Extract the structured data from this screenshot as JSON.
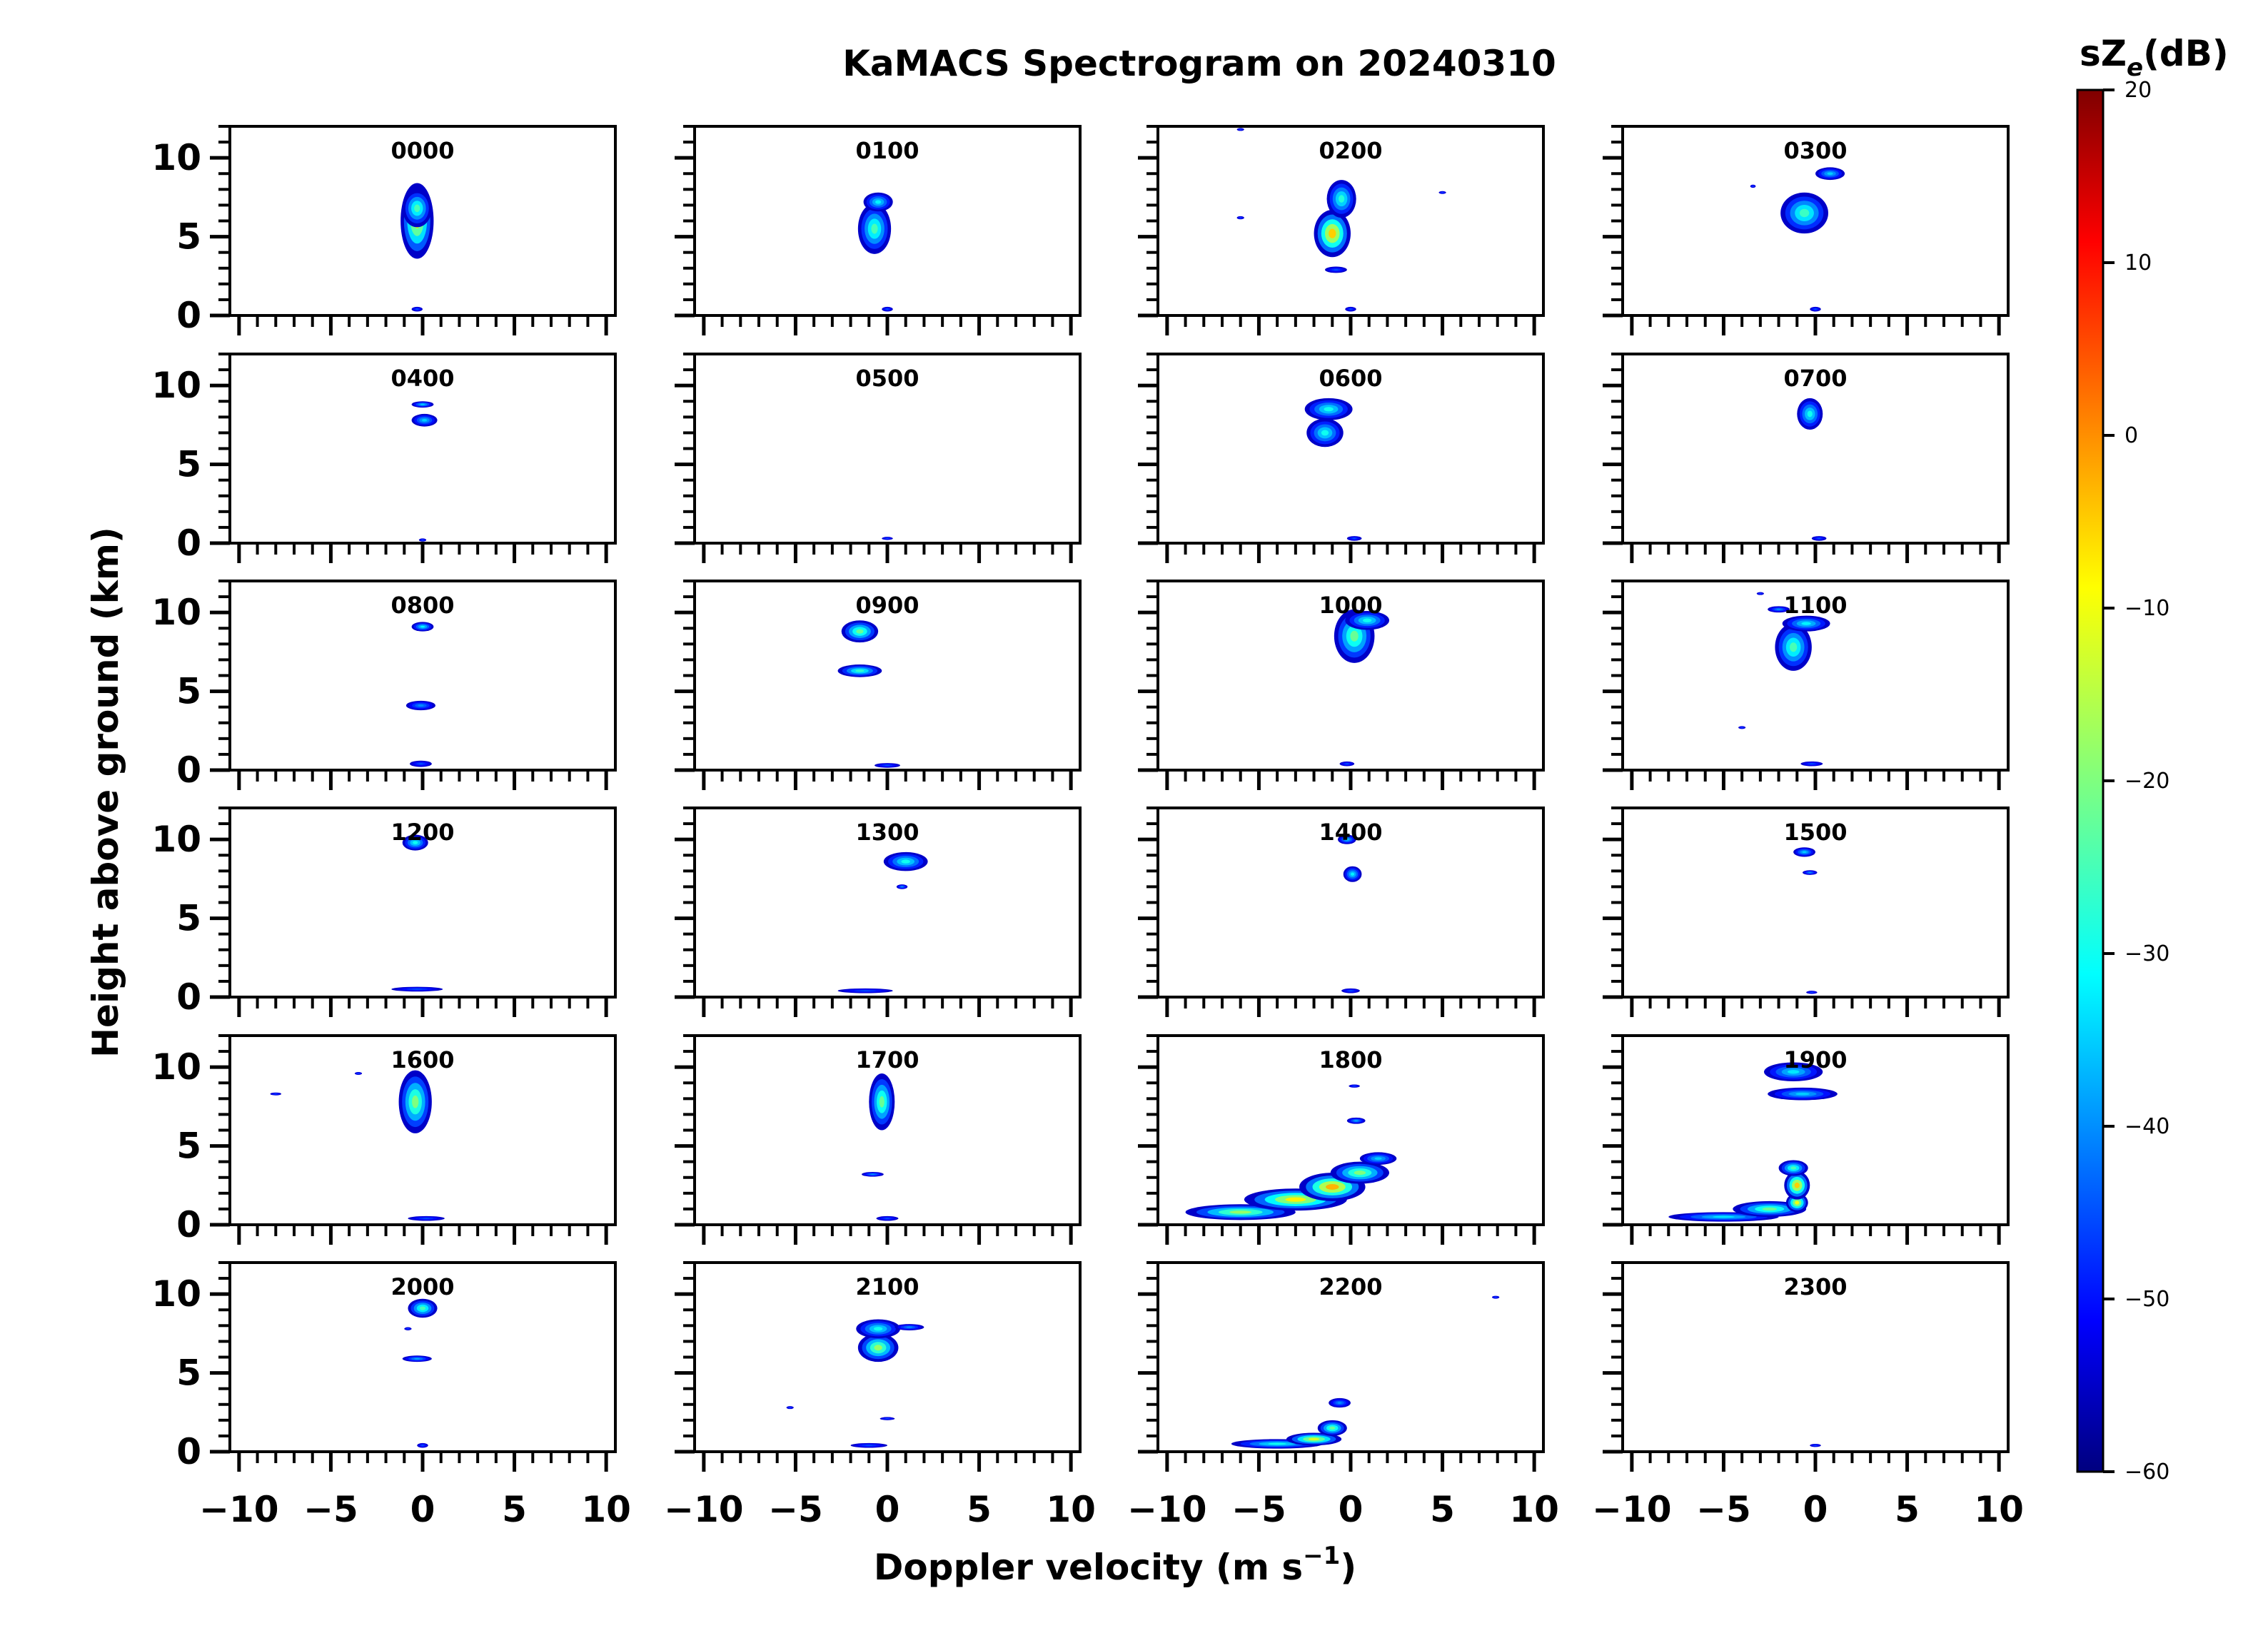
{
  "figure": {
    "title": "KaMACS Spectrogram on 20240310",
    "xlabel": "Doppler velocity (m s",
    "xlabel_sup": "−1",
    "xlabel_end": ")",
    "ylabel": "Height above ground (km)",
    "colorbar_label_main": "sZ",
    "colorbar_label_sub": "e",
    "colorbar_label_end": "(dB)"
  },
  "colorbar": {
    "ticks": [
      "20",
      "10",
      "0",
      "−10",
      "−20",
      "−30",
      "−40",
      "−50",
      "−60"
    ],
    "range": [
      -60,
      20
    ],
    "colormap": "jet",
    "colors": [
      "#00007f",
      "#0000ff",
      "#007fff",
      "#00ffff",
      "#7fff7f",
      "#ffff00",
      "#ff7f00",
      "#ff0000",
      "#7f0000"
    ]
  },
  "axes": {
    "xticks": [
      "−10",
      "−5",
      "0",
      "5",
      "10"
    ],
    "yticks": [
      "10",
      "5",
      "0"
    ]
  },
  "chart_data": {
    "type": "heatmap",
    "title": "KaMACS Spectrogram on 20240310",
    "xlabel": "Doppler velocity (m s−1)",
    "ylabel": "Height above ground (km)",
    "xlim": [
      -10.5,
      10.5
    ],
    "ylim": [
      0,
      12
    ],
    "xticks": [
      -10,
      -5,
      0,
      5,
      10
    ],
    "yticks": [
      0,
      5,
      10
    ],
    "colorbar": {
      "label": "sZe(dB)",
      "range": [
        -60,
        20
      ]
    },
    "panels": [
      {
        "label": "0000",
        "blobs": [
          {
            "v": -0.3,
            "h": 6.0,
            "dv": 0.9,
            "dh": 2.4,
            "z": -12
          },
          {
            "v": -0.3,
            "h": 6.8,
            "dv": 0.8,
            "dh": 1.2,
            "z": -25
          },
          {
            "v": -0.3,
            "h": 0.4,
            "dv": 0.3,
            "dh": 0.15,
            "z": -45
          }
        ]
      },
      {
        "label": "0100",
        "blobs": [
          {
            "v": -0.7,
            "h": 5.5,
            "dv": 0.9,
            "dh": 1.6,
            "z": -25
          },
          {
            "v": -0.5,
            "h": 7.2,
            "dv": 0.8,
            "dh": 0.6,
            "z": -32
          },
          {
            "v": 0.0,
            "h": 0.4,
            "dv": 0.3,
            "dh": 0.15,
            "z": -45
          }
        ]
      },
      {
        "label": "0200",
        "blobs": [
          {
            "v": -1.0,
            "h": 5.2,
            "dv": 1.0,
            "dh": 1.5,
            "z": -5
          },
          {
            "v": -0.5,
            "h": 7.4,
            "dv": 0.8,
            "dh": 1.2,
            "z": -28
          },
          {
            "v": -0.8,
            "h": 2.9,
            "dv": 0.6,
            "dh": 0.2,
            "z": -45
          },
          {
            "v": -6.0,
            "h": 6.2,
            "dv": 0.2,
            "dh": 0.1,
            "z": -45
          },
          {
            "v": 5.0,
            "h": 7.8,
            "dv": 0.2,
            "dh": 0.08,
            "z": -45
          },
          {
            "v": -6.0,
            "h": 11.8,
            "dv": 0.2,
            "dh": 0.08,
            "z": -45
          },
          {
            "v": 0.0,
            "h": 0.4,
            "dv": 0.3,
            "dh": 0.15,
            "z": -45
          }
        ]
      },
      {
        "label": "0300",
        "blobs": [
          {
            "v": -0.6,
            "h": 6.5,
            "dv": 1.3,
            "dh": 1.3,
            "z": -26
          },
          {
            "v": 0.8,
            "h": 9.0,
            "dv": 0.8,
            "dh": 0.4,
            "z": -35
          },
          {
            "v": -3.4,
            "h": 8.2,
            "dv": 0.15,
            "dh": 0.1,
            "z": -45
          },
          {
            "v": 0.0,
            "h": 0.4,
            "dv": 0.3,
            "dh": 0.15,
            "z": -45
          }
        ]
      },
      {
        "label": "0400",
        "blobs": [
          {
            "v": 0.0,
            "h": 8.8,
            "dv": 0.6,
            "dh": 0.2,
            "z": -35
          },
          {
            "v": 0.1,
            "h": 7.8,
            "dv": 0.7,
            "dh": 0.4,
            "z": -35
          },
          {
            "v": 0.0,
            "h": 0.2,
            "dv": 0.2,
            "dh": 0.1,
            "z": -45
          }
        ]
      },
      {
        "label": "0500",
        "blobs": [
          {
            "v": 0.0,
            "h": 0.3,
            "dv": 0.3,
            "dh": 0.1,
            "z": -45
          }
        ]
      },
      {
        "label": "0600",
        "blobs": [
          {
            "v": -1.2,
            "h": 8.5,
            "dv": 1.3,
            "dh": 0.7,
            "z": -30
          },
          {
            "v": -1.4,
            "h": 7.0,
            "dv": 1.0,
            "dh": 0.9,
            "z": -30
          },
          {
            "v": 0.2,
            "h": 0.3,
            "dv": 0.4,
            "dh": 0.15,
            "z": -45
          }
        ]
      },
      {
        "label": "0700",
        "blobs": [
          {
            "v": -0.3,
            "h": 8.2,
            "dv": 0.7,
            "dh": 1.0,
            "z": -30
          },
          {
            "v": 0.2,
            "h": 0.3,
            "dv": 0.4,
            "dh": 0.15,
            "z": -45
          }
        ]
      },
      {
        "label": "0800",
        "blobs": [
          {
            "v": 0.0,
            "h": 9.1,
            "dv": 0.6,
            "dh": 0.3,
            "z": -32
          },
          {
            "v": -0.1,
            "h": 4.1,
            "dv": 0.8,
            "dh": 0.3,
            "z": -40
          },
          {
            "v": -0.1,
            "h": 0.4,
            "dv": 0.6,
            "dh": 0.2,
            "z": -45
          }
        ]
      },
      {
        "label": "0900",
        "blobs": [
          {
            "v": -1.5,
            "h": 8.8,
            "dv": 1.0,
            "dh": 0.7,
            "z": -22
          },
          {
            "v": -1.5,
            "h": 6.3,
            "dv": 1.2,
            "dh": 0.4,
            "z": -27
          },
          {
            "v": 0.0,
            "h": 0.3,
            "dv": 0.7,
            "dh": 0.15,
            "z": -45
          }
        ]
      },
      {
        "label": "1000",
        "blobs": [
          {
            "v": 0.2,
            "h": 8.5,
            "dv": 1.1,
            "dh": 1.7,
            "z": -22
          },
          {
            "v": 0.9,
            "h": 9.5,
            "dv": 1.2,
            "dh": 0.6,
            "z": -30
          },
          {
            "v": -0.2,
            "h": 0.4,
            "dv": 0.4,
            "dh": 0.15,
            "z": -45
          }
        ]
      },
      {
        "label": "1100",
        "blobs": [
          {
            "v": -1.2,
            "h": 7.8,
            "dv": 1.0,
            "dh": 1.5,
            "z": -25
          },
          {
            "v": -0.5,
            "h": 9.3,
            "dv": 1.3,
            "dh": 0.5,
            "z": -32
          },
          {
            "v": -2.0,
            "h": 10.2,
            "dv": 0.6,
            "dh": 0.2,
            "z": -40
          },
          {
            "v": -4.0,
            "h": 2.7,
            "dv": 0.2,
            "dh": 0.08,
            "z": -45
          },
          {
            "v": -3.0,
            "h": 11.2,
            "dv": 0.2,
            "dh": 0.08,
            "z": -45
          },
          {
            "v": -0.2,
            "h": 0.4,
            "dv": 0.6,
            "dh": 0.15,
            "z": -45
          }
        ]
      },
      {
        "label": "1200",
        "blobs": [
          {
            "v": -0.4,
            "h": 9.8,
            "dv": 0.7,
            "dh": 0.5,
            "z": -30
          },
          {
            "v": -0.3,
            "h": 0.5,
            "dv": 1.4,
            "dh": 0.15,
            "z": -45
          }
        ]
      },
      {
        "label": "1300",
        "blobs": [
          {
            "v": 1.0,
            "h": 8.6,
            "dv": 1.2,
            "dh": 0.6,
            "z": -30
          },
          {
            "v": 0.8,
            "h": 7.0,
            "dv": 0.3,
            "dh": 0.15,
            "z": -40
          },
          {
            "v": -1.2,
            "h": 0.4,
            "dv": 1.5,
            "dh": 0.15,
            "z": -45
          }
        ]
      },
      {
        "label": "1400",
        "blobs": [
          {
            "v": -0.2,
            "h": 10.0,
            "dv": 0.5,
            "dh": 0.3,
            "z": -35
          },
          {
            "v": 0.1,
            "h": 7.8,
            "dv": 0.5,
            "dh": 0.5,
            "z": -32
          },
          {
            "v": 0.0,
            "h": 0.4,
            "dv": 0.5,
            "dh": 0.15,
            "z": -45
          }
        ]
      },
      {
        "label": "1500",
        "blobs": [
          {
            "v": -0.6,
            "h": 9.2,
            "dv": 0.6,
            "dh": 0.3,
            "z": -35
          },
          {
            "v": -0.3,
            "h": 7.9,
            "dv": 0.4,
            "dh": 0.15,
            "z": -40
          },
          {
            "v": -0.2,
            "h": 0.3,
            "dv": 0.3,
            "dh": 0.1,
            "z": -45
          }
        ]
      },
      {
        "label": "1600",
        "blobs": [
          {
            "v": -0.4,
            "h": 7.8,
            "dv": 0.9,
            "dh": 2.0,
            "z": -20
          },
          {
            "v": -8.0,
            "h": 8.3,
            "dv": 0.3,
            "dh": 0.08,
            "z": -45
          },
          {
            "v": -3.5,
            "h": 9.6,
            "dv": 0.2,
            "dh": 0.08,
            "z": -45
          },
          {
            "v": 0.2,
            "h": 0.4,
            "dv": 1.0,
            "dh": 0.15,
            "z": -45
          }
        ]
      },
      {
        "label": "1700",
        "blobs": [
          {
            "v": -0.3,
            "h": 7.8,
            "dv": 0.7,
            "dh": 1.8,
            "z": -22
          },
          {
            "v": -0.8,
            "h": 3.2,
            "dv": 0.6,
            "dh": 0.15,
            "z": -40
          },
          {
            "v": 0.0,
            "h": 0.4,
            "dv": 0.6,
            "dh": 0.15,
            "z": -45
          }
        ]
      },
      {
        "label": "1800",
        "blobs": [
          {
            "v": -6.0,
            "h": 0.8,
            "dv": 3.0,
            "dh": 0.5,
            "z": -18
          },
          {
            "v": -3.0,
            "h": 1.6,
            "dv": 2.8,
            "dh": 0.7,
            "z": -8
          },
          {
            "v": -1.0,
            "h": 2.4,
            "dv": 1.8,
            "dh": 0.9,
            "z": -3
          },
          {
            "v": 0.5,
            "h": 3.3,
            "dv": 1.6,
            "dh": 0.7,
            "z": -20
          },
          {
            "v": 1.5,
            "h": 4.2,
            "dv": 1.0,
            "dh": 0.4,
            "z": -35
          },
          {
            "v": 0.3,
            "h": 6.6,
            "dv": 0.5,
            "dh": 0.2,
            "z": -38
          },
          {
            "v": 0.2,
            "h": 8.8,
            "dv": 0.3,
            "dh": 0.1,
            "z": -45
          }
        ]
      },
      {
        "label": "1900",
        "blobs": [
          {
            "v": -1.2,
            "h": 9.7,
            "dv": 1.6,
            "dh": 0.6,
            "z": -33
          },
          {
            "v": -0.7,
            "h": 8.3,
            "dv": 1.9,
            "dh": 0.4,
            "z": -35
          },
          {
            "v": -5.0,
            "h": 0.5,
            "dv": 3.0,
            "dh": 0.3,
            "z": -33
          },
          {
            "v": -2.5,
            "h": 1.0,
            "dv": 2.0,
            "dh": 0.5,
            "z": -22
          },
          {
            "v": -1.0,
            "h": 1.4,
            "dv": 0.6,
            "dh": 0.6,
            "z": -10
          },
          {
            "v": -1.0,
            "h": 2.5,
            "dv": 0.7,
            "dh": 0.9,
            "z": -5
          },
          {
            "v": -1.2,
            "h": 3.6,
            "dv": 0.8,
            "dh": 0.5,
            "z": -25
          }
        ]
      },
      {
        "label": "2000",
        "blobs": [
          {
            "v": 0.0,
            "h": 9.1,
            "dv": 0.8,
            "dh": 0.6,
            "z": -25
          },
          {
            "v": -0.3,
            "h": 5.9,
            "dv": 0.8,
            "dh": 0.2,
            "z": -38
          },
          {
            "v": -0.8,
            "h": 7.8,
            "dv": 0.2,
            "dh": 0.1,
            "z": -45
          },
          {
            "v": 0.0,
            "h": 0.4,
            "dv": 0.3,
            "dh": 0.15,
            "z": -45
          }
        ]
      },
      {
        "label": "2100",
        "blobs": [
          {
            "v": -0.5,
            "h": 6.6,
            "dv": 1.1,
            "dh": 0.9,
            "z": -18
          },
          {
            "v": -0.5,
            "h": 7.8,
            "dv": 1.2,
            "dh": 0.6,
            "z": -30
          },
          {
            "v": 1.2,
            "h": 7.9,
            "dv": 0.8,
            "dh": 0.2,
            "z": -40
          },
          {
            "v": 0.0,
            "h": 2.1,
            "dv": 0.4,
            "dh": 0.1,
            "z": -45
          },
          {
            "v": -5.3,
            "h": 2.8,
            "dv": 0.2,
            "dh": 0.08,
            "z": -45
          },
          {
            "v": -1.0,
            "h": 0.4,
            "dv": 1.0,
            "dh": 0.15,
            "z": -45
          }
        ]
      },
      {
        "label": "2200",
        "blobs": [
          {
            "v": -4.0,
            "h": 0.5,
            "dv": 2.5,
            "dh": 0.3,
            "z": -30
          },
          {
            "v": -2.0,
            "h": 0.8,
            "dv": 1.5,
            "dh": 0.4,
            "z": -12
          },
          {
            "v": -1.0,
            "h": 1.5,
            "dv": 0.8,
            "dh": 0.5,
            "z": -22
          },
          {
            "v": -0.6,
            "h": 3.1,
            "dv": 0.6,
            "dh": 0.3,
            "z": -40
          },
          {
            "v": 7.9,
            "h": 9.8,
            "dv": 0.2,
            "dh": 0.08,
            "z": -45
          }
        ]
      },
      {
        "label": "2300",
        "blobs": [
          {
            "v": 0.0,
            "h": 0.4,
            "dv": 0.3,
            "dh": 0.1,
            "z": -45
          }
        ]
      }
    ]
  }
}
